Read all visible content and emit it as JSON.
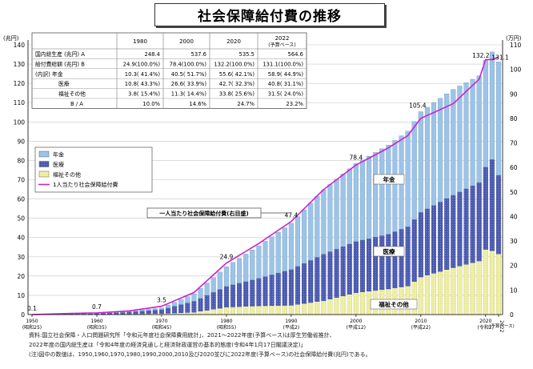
{
  "title": "社会保障給付費の推移",
  "chart_data": {
    "type": "bar",
    "title": "社会保障給付費の推移",
    "left_axis_unit": "(兆円)",
    "right_axis_unit": "(万円)",
    "ylim_left": [
      0,
      140
    ],
    "ylim_right": [
      0,
      110
    ],
    "y_ticks_left": [
      "0",
      "10",
      "20",
      "30",
      "40",
      "50",
      "60",
      "70",
      "80",
      "90",
      "100",
      "110",
      "120",
      "130",
      "140"
    ],
    "y_ticks_right": [
      "0",
      "10",
      "20",
      "30",
      "40",
      "50",
      "60",
      "70",
      "80",
      "90",
      "100",
      "110"
    ],
    "x_ticks": [
      {
        "year": 1950,
        "label": "1950",
        "sub": "(昭和25)"
      },
      {
        "year": 1960,
        "label": "1960",
        "sub": "(昭和35)"
      },
      {
        "year": 1970,
        "label": "1970",
        "sub": "(昭和45)"
      },
      {
        "year": 1980,
        "label": "1980",
        "sub": "(昭和55)"
      },
      {
        "year": 1990,
        "label": "1990",
        "sub": "(平成2)"
      },
      {
        "year": 2000,
        "label": "2000",
        "sub": "(平成12)"
      },
      {
        "year": 2010,
        "label": "2010",
        "sub": "(平成22)"
      },
      {
        "year": 2020,
        "label": "2020",
        "sub": "(令和2)"
      },
      {
        "year": 2022,
        "label": "2022",
        "sub": "(予算ベース)"
      }
    ],
    "grid": true,
    "legend": [
      "年金",
      "医療",
      "福祉その他",
      "1人当たり社会保障給付費"
    ],
    "legend_position": "left",
    "colors": {
      "pension": "#9dc3e6",
      "medical": "#4a5ab0",
      "welfare": "#f0f0a8",
      "per_capita_line": "#cc22cc"
    },
    "series_anchor_years": [
      1950,
      1955,
      1960,
      1965,
      1970,
      1975,
      1980,
      1985,
      1990,
      1995,
      2000,
      2005,
      2008,
      2010,
      2015,
      2019,
      2020,
      2021,
      2022
    ],
    "series": [
      {
        "name": "年金",
        "values": [
          0.0,
          0.04,
          0.1,
          0.3,
          0.9,
          3.9,
          10.3,
          16.9,
          24.0,
          33.5,
          40.5,
          46.3,
          49.6,
          52.2,
          54.9,
          55.4,
          55.6,
          55.8,
          58.9
        ]
      },
      {
        "name": "医療",
        "values": [
          0.07,
          0.16,
          0.35,
          1.0,
          2.1,
          5.7,
          10.8,
          14.3,
          18.6,
          24.1,
          26.6,
          28.4,
          30.8,
          33.6,
          37.7,
          40.7,
          42.7,
          47.4,
          40.8
        ]
      },
      {
        "name": "福祉その他",
        "values": [
          0.03,
          0.04,
          0.05,
          0.3,
          0.5,
          1.2,
          3.8,
          4.5,
          4.8,
          7.2,
          11.3,
          13.3,
          14.8,
          19.5,
          24.3,
          27.8,
          33.8,
          33.1,
          31.5
        ]
      },
      {
        "name": "1人当たり社会保障給付費",
        "axis": "right",
        "values": [
          0.0,
          0.4,
          0.7,
          1.5,
          3.4,
          9.0,
          21.0,
          29.0,
          38.0,
          51.0,
          61.0,
          68.0,
          73.0,
          80.0,
          86.0,
          96.0,
          104.0,
          104.0,
          105.0
        ]
      }
    ],
    "annotations": [
      {
        "year": 1950,
        "text": "0.1"
      },
      {
        "year": 1960,
        "text": "0.7"
      },
      {
        "year": 1970,
        "text": "3.5"
      },
      {
        "year": 1980,
        "text": "24.9"
      },
      {
        "year": 1990,
        "text": "47.4"
      },
      {
        "year": 2000,
        "text": "78.4"
      },
      {
        "year": 2010,
        "text": "105.4"
      },
      {
        "year": 2020,
        "text": "132.2"
      },
      {
        "year": 2022,
        "text": "131.1"
      }
    ],
    "line_callout": "一人当たり社会保障給付費(右目盛)",
    "area_labels": [
      "年金",
      "医療",
      "福祉その他"
    ],
    "table": {
      "columns": [
        "",
        "1980",
        "2000",
        "2020",
        "2022"
      ],
      "column_sub": [
        "",
        "",
        "",
        "",
        "(予算ベース)"
      ],
      "rows": [
        [
          "国内総生産 (兆円) A",
          "248.4",
          "537.6",
          "535.5",
          "564.6"
        ],
        [
          "給付費総額 (兆円) B",
          "24.9(100.0%)",
          "78.4(100.0%)",
          "132.2(100.0%)",
          "131.1(100.0%)"
        ],
        [
          "(内訳) 年金",
          "10.3( 41.4%)",
          "40.5( 51.7%)",
          "55.6( 42.1%)",
          "58.9( 44.9%)"
        ],
        [
          "医療",
          "10.8( 43.3%)",
          "26.6( 33.9%)",
          "42.7( 32.3%)",
          "40.8( 31.1%)"
        ],
        [
          "福祉その他",
          "3.8( 15.4%)",
          "11.3( 14.4%)",
          "33.8( 25.6%)",
          "31.5( 24.0%)"
        ],
        [
          "B / A",
          "10.0%",
          "14.6%",
          "24.7%",
          "23.2%"
        ]
      ]
    }
  },
  "notes": [
    "資料:国立社会保障・人口問題研究所「令和元年度社会保障費用統計」、2021〜2022年度(予算ベース)は厚生労働省推計、",
    "2022年度の国内総生産は「令和4年度の経済見通しと経済財政運営の基本的態度(令和4年1月17日閣議決定)」",
    "(注)図中の数値は、1950,1960,1970,1980,1990,2000,2010及び2020並びに2022年度(予算ベース)の社会保障給付費(兆円)である。"
  ]
}
